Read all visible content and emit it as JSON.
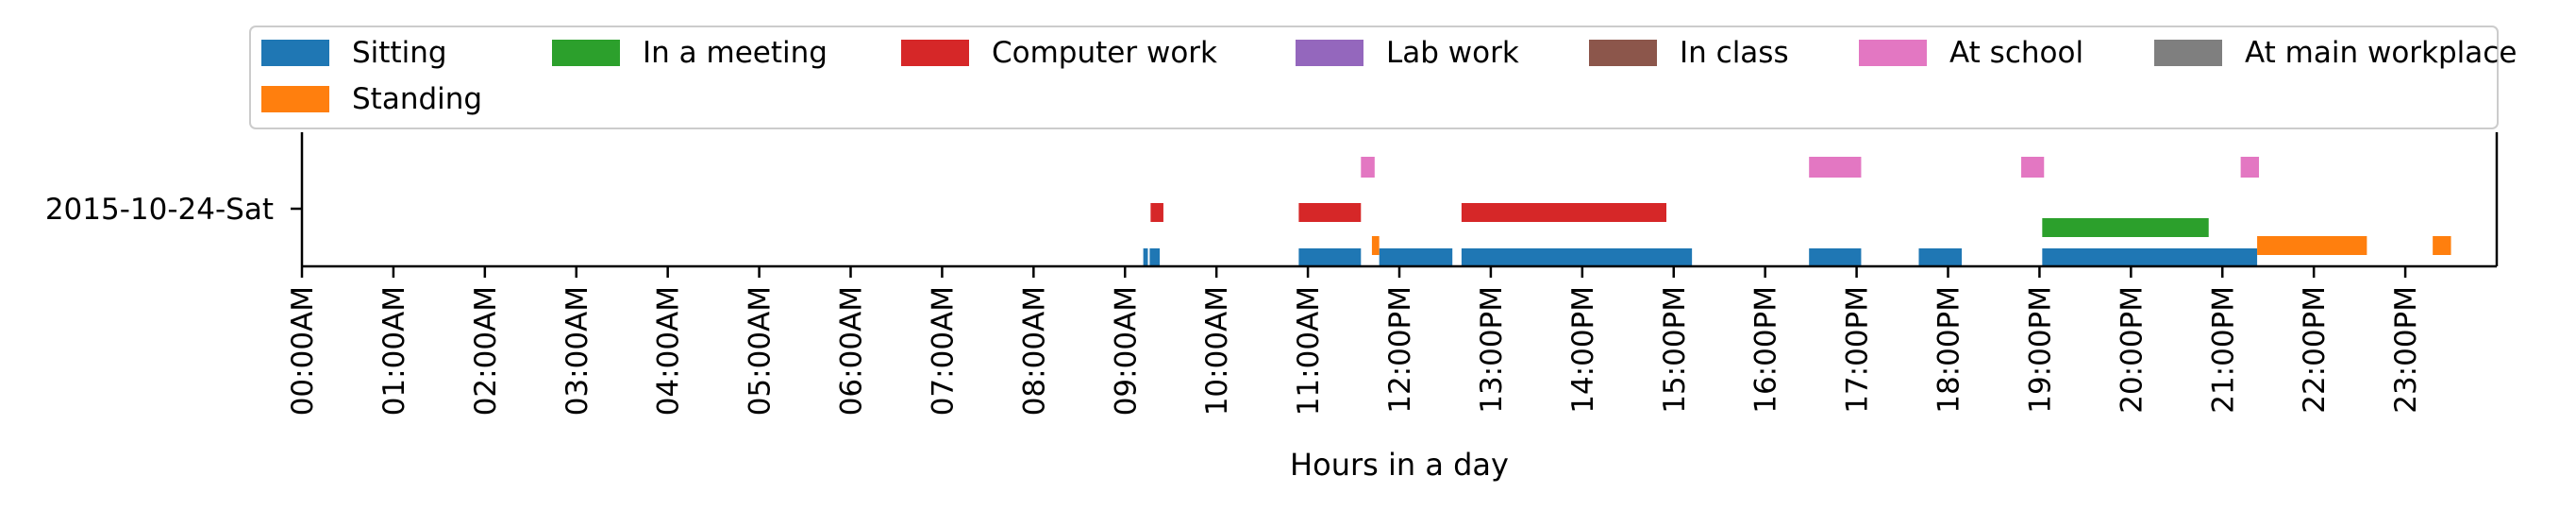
{
  "chart_data": {
    "type": "timeline",
    "title": "",
    "xlabel": "Hours in a day",
    "ylabel": "",
    "xlim": [
      0,
      24
    ],
    "row_label": "2015-10-24-Sat",
    "x_tick_labels": [
      "00:00AM",
      "01:00AM",
      "02:00AM",
      "03:00AM",
      "04:00AM",
      "05:00AM",
      "06:00AM",
      "07:00AM",
      "08:00AM",
      "09:00AM",
      "10:00AM",
      "11:00AM",
      "12:00PM",
      "13:00PM",
      "14:00PM",
      "15:00PM",
      "16:00PM",
      "17:00PM",
      "18:00PM",
      "19:00PM",
      "20:00PM",
      "21:00PM",
      "22:00PM",
      "23:00PM"
    ],
    "legend_position": "top",
    "series": [
      {
        "name": "Sitting",
        "color": "#1f77b4",
        "lane": 0,
        "intervals": [
          [
            9.2,
            9.25
          ],
          [
            9.27,
            9.38
          ],
          [
            10.9,
            11.58
          ],
          [
            11.78,
            12.58
          ],
          [
            12.68,
            15.2
          ],
          [
            16.48,
            17.05
          ],
          [
            17.68,
            18.15
          ],
          [
            19.03,
            21.38
          ]
        ]
      },
      {
        "name": "Standing",
        "color": "#ff7f0e",
        "lane": 0.4,
        "intervals": [
          [
            11.7,
            11.78
          ],
          [
            21.38,
            22.58
          ],
          [
            23.3,
            23.5
          ]
        ]
      },
      {
        "name": "In a meeting",
        "color": "#2ca02c",
        "lane": 1,
        "intervals": [
          [
            19.03,
            20.85
          ]
        ]
      },
      {
        "name": "Computer work",
        "color": "#d62728",
        "lane": 2,
        "intervals": [
          [
            9.28,
            9.42
          ],
          [
            10.9,
            11.58
          ],
          [
            12.68,
            14.92
          ]
        ]
      },
      {
        "name": "Lab work",
        "color": "#9467bd",
        "lane": 3,
        "intervals": []
      },
      {
        "name": "In class",
        "color": "#8c564b",
        "lane": 3,
        "intervals": []
      },
      {
        "name": "At school",
        "color": "#e377c2",
        "lane": 3,
        "intervals": [
          [
            11.58,
            11.73
          ],
          [
            16.48,
            17.05
          ],
          [
            18.8,
            19.05
          ],
          [
            21.2,
            21.4
          ]
        ]
      },
      {
        "name": "At main workplace",
        "color": "#7f7f7f",
        "lane": 4,
        "intervals": []
      }
    ]
  }
}
